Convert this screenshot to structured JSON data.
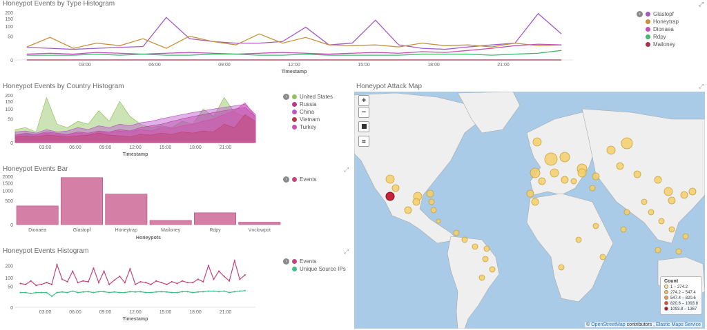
{
  "panels": {
    "type_hist": {
      "title": "Honeypot Events by Type Histogram",
      "xlabel": "Timestamp",
      "legend": [
        {
          "name": "Glastopf",
          "color": "#a35ac6"
        },
        {
          "name": "Honeytrap",
          "color": "#c5923a"
        },
        {
          "name": "Dionaea",
          "color": "#c44fb8"
        },
        {
          "name": "Rdpy",
          "color": "#43b86b"
        },
        {
          "name": "Mailoney",
          "color": "#a8324a"
        }
      ]
    },
    "country_hist": {
      "title": "Honeypot Events by Country Histogram",
      "xlabel": "Timestamp",
      "legend": [
        {
          "name": "United States",
          "color": "#8ec25a"
        },
        {
          "name": "Russia",
          "color": "#b53a8c"
        },
        {
          "name": "China",
          "color": "#b957c9"
        },
        {
          "name": "Vietnam",
          "color": "#b8393e"
        },
        {
          "name": "Turkey",
          "color": "#cf4fae"
        }
      ]
    },
    "events_bar": {
      "title": "Honeypot Events Bar",
      "xlabel": "Honeypots",
      "legend": [
        {
          "name": "Events",
          "color": "#c2457e"
        }
      ]
    },
    "events_hist": {
      "title": "Honeypot Events Histogram",
      "xlabel": "Timestamp",
      "legend": [
        {
          "name": "Events",
          "color": "#c2457e"
        },
        {
          "name": "Unique Source IPs",
          "color": "#3dbf86"
        }
      ]
    },
    "map": {
      "title": "Honeypot Attack Map",
      "zoom_in": "+",
      "zoom_out": "−",
      "legend_title": "Count",
      "legend": [
        {
          "label": "1 – 274.2",
          "color": "#ffe68a"
        },
        {
          "label": "274.2 – 547.4",
          "color": "#f7c24a"
        },
        {
          "label": "547.4 – 820.6",
          "color": "#f09a3a"
        },
        {
          "label": "820.6 – 1093.8",
          "color": "#e0492e"
        },
        {
          "label": "1093.8 – 1367",
          "color": "#b3141e"
        }
      ],
      "attribution_prefix": "©",
      "attribution_osm": "OpenStreetMap",
      "attribution_mid": "contributors ,",
      "attribution_ems": "Elastic Maps Service"
    }
  },
  "chart_data": [
    {
      "type": "line",
      "title": "Honeypot Events by Type Histogram",
      "xlabel": "Timestamp",
      "ylabel": "",
      "y_ticks": [
        0,
        50,
        100,
        150,
        200
      ],
      "x_ticks": [
        "03:00",
        "06:00",
        "09:00",
        "12:00",
        "15:00",
        "18:00",
        "21:00"
      ],
      "x_hours": [
        0,
        1,
        2,
        3,
        4,
        5,
        6,
        7,
        8,
        9,
        10,
        11,
        12,
        13,
        14,
        15,
        16,
        17,
        18,
        19,
        20,
        21,
        22,
        23
      ],
      "series": [
        {
          "name": "Glastopf",
          "values": [
            14,
            12,
            10,
            12,
            14,
            16,
            160,
            40,
            30,
            25,
            25,
            30,
            95,
            20,
            25,
            140,
            20,
            12,
            10,
            15,
            20,
            25,
            190,
            60
          ]
        },
        {
          "name": "Honeytrap",
          "values": [
            15,
            45,
            12,
            25,
            18,
            40,
            12,
            50,
            30,
            20,
            60,
            25,
            45,
            20,
            18,
            20,
            15,
            25,
            18,
            20,
            15,
            25,
            18,
            20
          ]
        },
        {
          "name": "Dionaea",
          "values": [
            3,
            4,
            3,
            5,
            4,
            3,
            4,
            5,
            4,
            3,
            4,
            5,
            4,
            3,
            4,
            5,
            4,
            6,
            5,
            8,
            12,
            18,
            22,
            20
          ]
        },
        {
          "name": "Rdpy",
          "values": [
            2,
            2,
            2,
            3,
            2,
            3,
            2,
            2,
            3,
            3,
            2,
            2,
            3,
            2,
            2,
            2,
            2,
            3,
            3,
            3,
            2,
            3,
            4,
            8
          ]
        },
        {
          "name": "Mailoney",
          "values": [
            0,
            0,
            0,
            0,
            0,
            0,
            0,
            0,
            0,
            0,
            0,
            0,
            0,
            0,
            0,
            0,
            0,
            0,
            0,
            0,
            0,
            0,
            0,
            0
          ]
        }
      ]
    },
    {
      "type": "area",
      "title": "Honeypot Events by Country Histogram",
      "xlabel": "Timestamp",
      "y_ticks": [
        0,
        50,
        100,
        150,
        200
      ],
      "x_ticks": [
        "03:00",
        "06:00",
        "09:00",
        "12:00",
        "15:00",
        "18:00",
        "21:00"
      ],
      "x_hours": [
        0,
        1,
        2,
        3,
        4,
        5,
        6,
        7,
        8,
        9,
        10,
        11,
        12,
        13,
        14,
        15,
        16,
        17,
        18,
        19,
        20,
        21,
        22,
        23
      ],
      "series": [
        {
          "name": "United States",
          "values": [
            15,
            20,
            10,
            180,
            30,
            20,
            40,
            30,
            90,
            40,
            150,
            60,
            30,
            20,
            25,
            20,
            40,
            30,
            100,
            60,
            180,
            80,
            60,
            40
          ]
        },
        {
          "name": "Russia",
          "values": [
            5,
            8,
            6,
            10,
            8,
            6,
            10,
            8,
            12,
            10,
            15,
            12,
            20,
            25,
            30,
            40,
            50,
            60,
            70,
            80,
            90,
            100,
            110,
            60
          ]
        },
        {
          "name": "China",
          "values": [
            10,
            12,
            8,
            15,
            10,
            12,
            20,
            15,
            25,
            20,
            30,
            25,
            35,
            40,
            50,
            60,
            70,
            80,
            90,
            100,
            110,
            120,
            130,
            70
          ]
        },
        {
          "name": "Vietnam",
          "values": [
            3,
            4,
            3,
            5,
            4,
            3,
            4,
            5,
            8,
            5,
            4,
            3,
            6,
            5,
            8,
            6,
            10,
            8,
            12,
            10,
            30,
            20,
            70,
            40
          ]
        },
        {
          "name": "Turkey",
          "values": [
            5,
            6,
            5,
            8,
            6,
            5,
            8,
            6,
            10,
            8,
            12,
            10,
            15,
            12,
            20,
            18,
            25,
            30,
            40,
            50,
            70,
            90,
            140,
            60
          ]
        }
      ]
    },
    {
      "type": "bar",
      "title": "Honeypot Events Bar",
      "xlabel": "Honeypots",
      "y_ticks": [
        0,
        500,
        1000,
        1500,
        2000
      ],
      "categories": [
        "Dionaea",
        "Glastopf",
        "Honeytrap",
        "Mailoney",
        "Rdpy",
        "Vnclowpot"
      ],
      "series": [
        {
          "name": "Events",
          "values": [
            300,
            1900,
            800,
            15,
            120,
            5
          ]
        }
      ]
    },
    {
      "type": "line",
      "title": "Honeypot Events Histogram",
      "xlabel": "Timestamp",
      "y_ticks": [
        0,
        50,
        100,
        200
      ],
      "x_ticks": [
        "03:00",
        "06:00",
        "09:00",
        "12:00",
        "15:00",
        "18:00",
        "21:00"
      ],
      "x_hours": [
        0,
        0.5,
        1,
        1.5,
        2,
        2.5,
        3,
        3.5,
        4,
        4.5,
        5,
        5.5,
        6,
        6.5,
        7,
        7.5,
        8,
        8.5,
        9,
        9.5,
        10,
        10.5,
        11,
        11.5,
        12,
        12.5,
        13,
        13.5,
        14,
        14.5,
        15,
        15.5,
        16,
        16.5,
        17,
        17.5,
        18,
        18.5,
        19,
        19.5,
        20,
        20.5,
        21,
        21.5
      ],
      "series": [
        {
          "name": "Events",
          "values": [
            65,
            60,
            80,
            55,
            60,
            70,
            60,
            210,
            90,
            75,
            150,
            70,
            80,
            75,
            175,
            70,
            150,
            60,
            85,
            110,
            70,
            170,
            60,
            75,
            70,
            60,
            80,
            70,
            60,
            75,
            65,
            80,
            70,
            70,
            90,
            75,
            200,
            90,
            150,
            110,
            80,
            250,
            90,
            120
          ]
        },
        {
          "name": "Unique Source IPs",
          "values": [
            25,
            25,
            22,
            25,
            25,
            25,
            14,
            25,
            27,
            25,
            30,
            25,
            27,
            28,
            25,
            28,
            28,
            25,
            27,
            25,
            25,
            28,
            27,
            28,
            25,
            25,
            27,
            28,
            27,
            25,
            25,
            28,
            28,
            25,
            27,
            28,
            30,
            30,
            28,
            30,
            25,
            28,
            30,
            32
          ]
        }
      ]
    }
  ]
}
